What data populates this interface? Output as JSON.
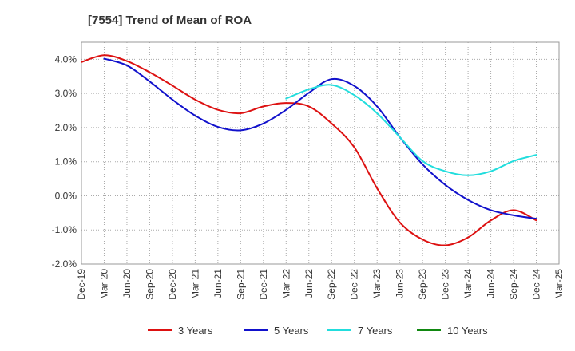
{
  "chart_data": {
    "type": "line",
    "title": "[7554]  Trend of Mean of ROA",
    "xlabel": "",
    "ylabel": "",
    "ylim": [
      -2.0,
      4.5
    ],
    "y_ticks": [
      4.0,
      3.0,
      2.0,
      1.0,
      0.0,
      -1.0,
      -2.0
    ],
    "y_tick_labels": [
      "4.0%",
      "3.0%",
      "2.0%",
      "1.0%",
      "0.0%",
      "-1.0%",
      "-2.0%"
    ],
    "categories": [
      "Dec-19",
      "Mar-20",
      "Jun-20",
      "Sep-20",
      "Dec-20",
      "Mar-21",
      "Jun-21",
      "Sep-21",
      "Dec-21",
      "Mar-22",
      "Jun-22",
      "Sep-22",
      "Dec-22",
      "Mar-23",
      "Jun-23",
      "Sep-23",
      "Dec-23",
      "Mar-24",
      "Jun-24",
      "Sep-24",
      "Dec-24",
      "Mar-25"
    ],
    "grid": true,
    "legend_position": "bottom",
    "series": [
      {
        "name": "3 Years",
        "color": "#dd1111",
        "values": [
          3.92,
          4.12,
          3.95,
          3.62,
          3.23,
          2.82,
          2.52,
          2.42,
          2.62,
          2.72,
          2.62,
          2.12,
          1.42,
          0.22,
          -0.78,
          -1.28,
          -1.45,
          -1.22,
          -0.72,
          -0.42,
          -0.72,
          null
        ]
      },
      {
        "name": "5 Years",
        "color": "#1111cc",
        "values": [
          null,
          4.02,
          3.82,
          3.35,
          2.82,
          2.35,
          2.02,
          1.92,
          2.12,
          2.52,
          3.02,
          3.42,
          3.22,
          2.62,
          1.72,
          0.92,
          0.32,
          -0.12,
          -0.42,
          -0.57,
          -0.67,
          null
        ]
      },
      {
        "name": "7 Years",
        "color": "#22dddd",
        "values": [
          null,
          null,
          null,
          null,
          null,
          null,
          null,
          null,
          null,
          2.85,
          3.12,
          3.25,
          2.95,
          2.42,
          1.72,
          1.02,
          0.72,
          0.6,
          0.72,
          1.02,
          1.2,
          null
        ]
      },
      {
        "name": "10 Years",
        "color": "#118811",
        "values": [
          null,
          null,
          null,
          null,
          null,
          null,
          null,
          null,
          null,
          null,
          null,
          null,
          null,
          null,
          null,
          null,
          null,
          null,
          null,
          null,
          null,
          null
        ]
      }
    ]
  }
}
